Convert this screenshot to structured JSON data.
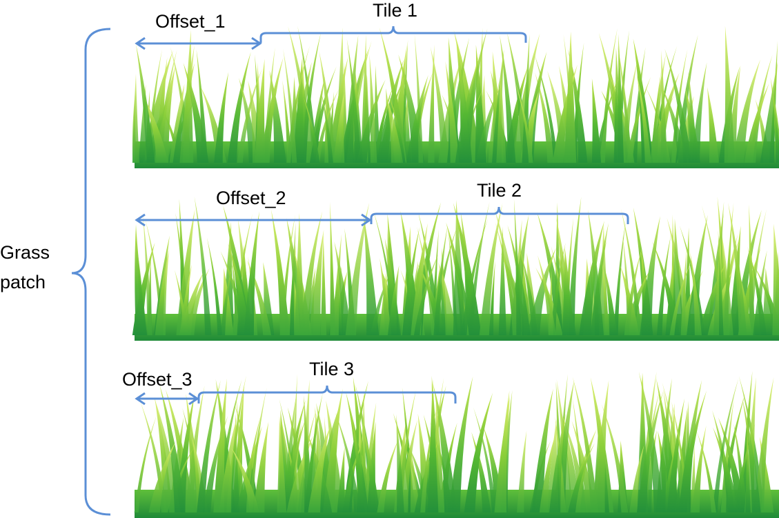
{
  "colors": {
    "annotation": "#5b8fd6",
    "grass_dark": "#2e9d3a",
    "grass_mid": "#6cc038",
    "grass_light": "#b5dd3a",
    "grass_tip": "#d8ee6a"
  },
  "group_label": {
    "line1": "Grass",
    "line2": "patch"
  },
  "strips": [
    {
      "offset_label": "Offset_1",
      "tile_label": "Tile 1"
    },
    {
      "offset_label": "Offset_2",
      "tile_label": "Tile 2"
    },
    {
      "offset_label": "Offset_3",
      "tile_label": "Tile 3"
    }
  ]
}
